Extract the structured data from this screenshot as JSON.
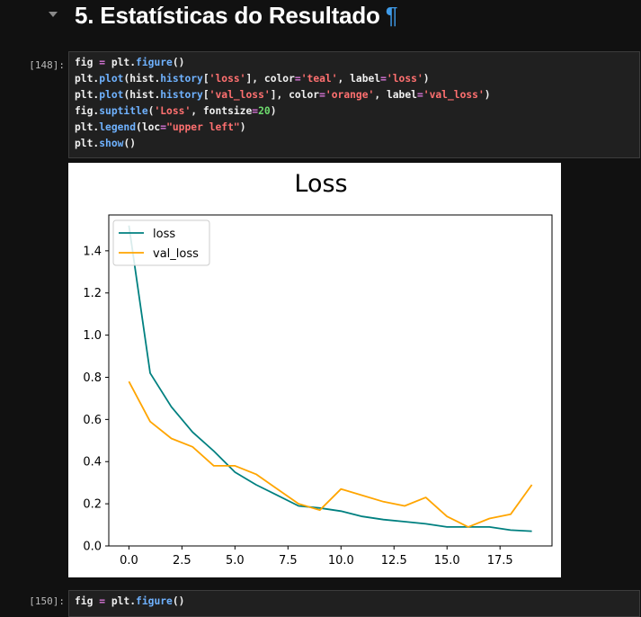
{
  "section": {
    "title": "5. Estatísticas do Resultado",
    "anchor": "¶"
  },
  "cells": [
    {
      "prompt": "[148]:",
      "code": [
        [
          [
            "plain",
            "fig "
          ],
          [
            "op",
            "="
          ],
          [
            "plain",
            " plt."
          ],
          [
            "fn",
            "figure"
          ],
          [
            "plain",
            "()"
          ]
        ],
        [
          [
            "plain",
            "plt."
          ],
          [
            "fn",
            "plot"
          ],
          [
            "plain",
            "(hist."
          ],
          [
            "fn",
            "history"
          ],
          [
            "plain",
            "["
          ],
          [
            "str",
            "'loss'"
          ],
          [
            "plain",
            "], color"
          ],
          [
            "op",
            "="
          ],
          [
            "str",
            "'teal'"
          ],
          [
            "plain",
            ", label"
          ],
          [
            "op",
            "="
          ],
          [
            "str",
            "'loss'"
          ],
          [
            "plain",
            ")"
          ]
        ],
        [
          [
            "plain",
            "plt."
          ],
          [
            "fn",
            "plot"
          ],
          [
            "plain",
            "(hist."
          ],
          [
            "fn",
            "history"
          ],
          [
            "plain",
            "["
          ],
          [
            "str",
            "'val_loss'"
          ],
          [
            "plain",
            "], color"
          ],
          [
            "op",
            "="
          ],
          [
            "str",
            "'orange'"
          ],
          [
            "plain",
            ", label"
          ],
          [
            "op",
            "="
          ],
          [
            "str",
            "'val_loss'"
          ],
          [
            "plain",
            ")"
          ]
        ],
        [
          [
            "plain",
            "fig."
          ],
          [
            "fn",
            "suptitle"
          ],
          [
            "plain",
            "("
          ],
          [
            "str",
            "'Loss'"
          ],
          [
            "plain",
            ", fontsize"
          ],
          [
            "op",
            "="
          ],
          [
            "num",
            "20"
          ],
          [
            "plain",
            ")"
          ]
        ],
        [
          [
            "plain",
            "plt."
          ],
          [
            "fn",
            "legend"
          ],
          [
            "plain",
            "(loc"
          ],
          [
            "op",
            "="
          ],
          [
            "str",
            "\"upper left\""
          ],
          [
            "plain",
            ")"
          ]
        ],
        [
          [
            "plain",
            "plt."
          ],
          [
            "fn",
            "show"
          ],
          [
            "plain",
            "()"
          ]
        ]
      ]
    },
    {
      "prompt": "[150]:",
      "code": [
        [
          [
            "plain",
            "fig "
          ],
          [
            "op",
            "="
          ],
          [
            "plain",
            " plt."
          ],
          [
            "fn",
            "figure"
          ],
          [
            "plain",
            "()"
          ]
        ]
      ]
    }
  ],
  "chart_data": {
    "type": "line",
    "title": "Loss",
    "x": [
      0,
      1,
      2,
      3,
      4,
      5,
      6,
      7,
      8,
      9,
      10,
      11,
      12,
      13,
      14,
      15,
      16,
      17,
      18,
      19
    ],
    "series": [
      {
        "name": "loss",
        "color": "#008080",
        "values": [
          1.52,
          0.82,
          0.66,
          0.54,
          0.45,
          0.35,
          0.29,
          0.24,
          0.19,
          0.18,
          0.165,
          0.14,
          0.125,
          0.115,
          0.105,
          0.09,
          0.09,
          0.09,
          0.075,
          0.07
        ]
      },
      {
        "name": "val_loss",
        "color": "#FFA500",
        "values": [
          0.78,
          0.59,
          0.51,
          0.47,
          0.38,
          0.38,
          0.34,
          0.27,
          0.2,
          0.17,
          0.27,
          0.24,
          0.21,
          0.19,
          0.23,
          0.14,
          0.09,
          0.13,
          0.15,
          0.29
        ]
      }
    ],
    "xlim": [
      -0.95,
      19.95
    ],
    "ylim": [
      0.0,
      1.57
    ],
    "xticks": [
      0.0,
      2.5,
      5.0,
      7.5,
      10.0,
      12.5,
      15.0,
      17.5
    ],
    "xtick_labels": [
      "0.0",
      "2.5",
      "5.0",
      "7.5",
      "10.0",
      "12.5",
      "15.0",
      "17.5"
    ],
    "yticks": [
      0.0,
      0.2,
      0.4,
      0.6,
      0.8,
      1.0,
      1.2,
      1.4
    ],
    "ytick_labels": [
      "0.0",
      "0.2",
      "0.4",
      "0.6",
      "0.8",
      "1.0",
      "1.2",
      "1.4"
    ],
    "legend": "upper left",
    "grid": false
  }
}
